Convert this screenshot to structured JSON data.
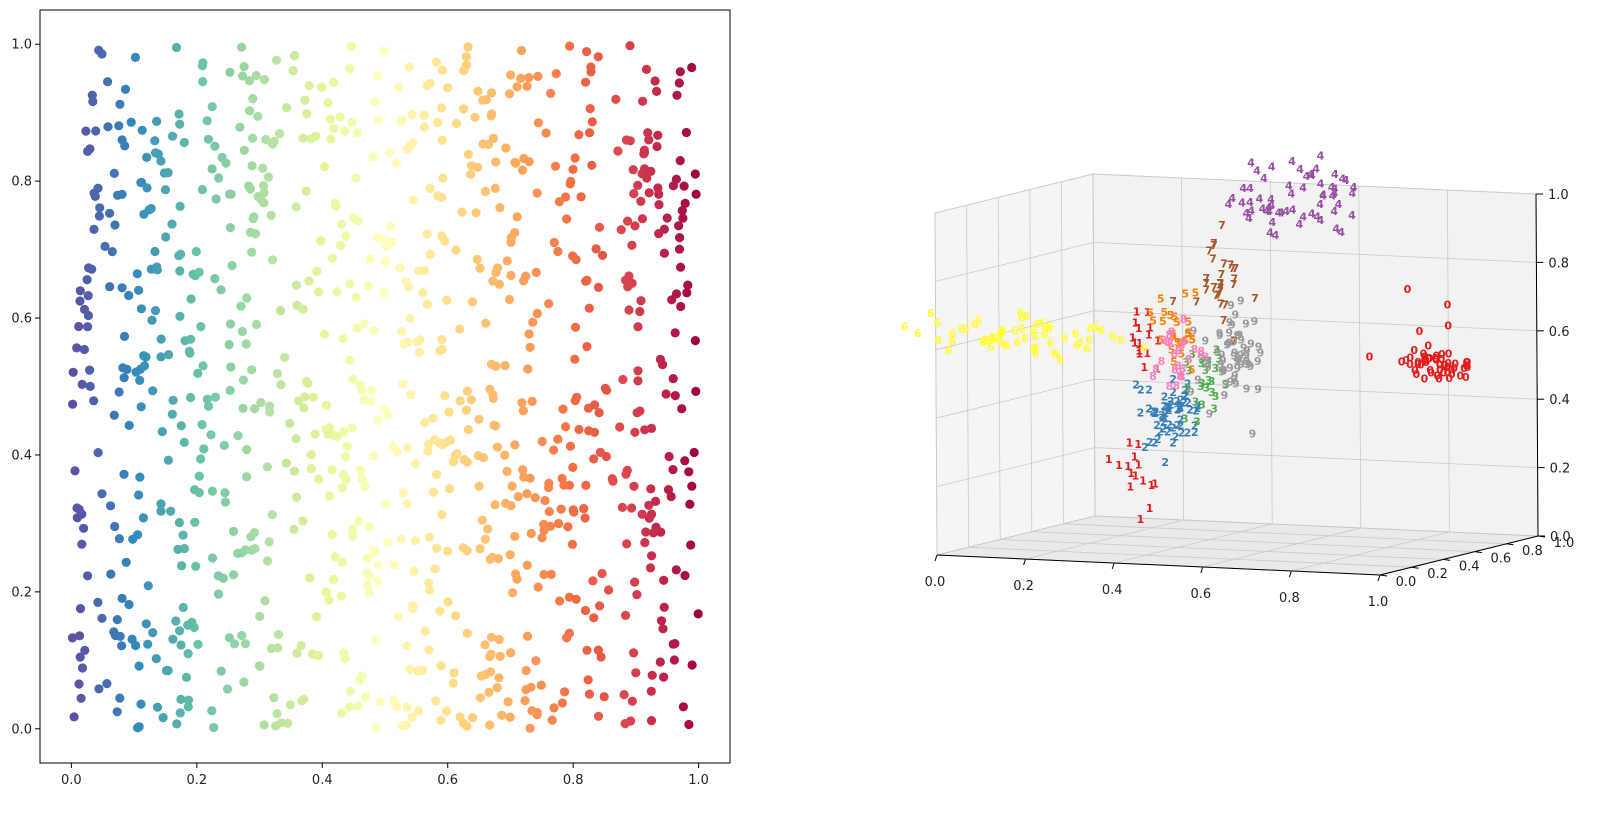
{
  "chart_data": [
    {
      "type": "scatter",
      "title": "",
      "xlabel": "",
      "ylabel": "",
      "xlim": [
        -0.05,
        1.05
      ],
      "ylim": [
        -0.05,
        1.05
      ],
      "xticks": [
        "0.0",
        "0.2",
        "0.4",
        "0.6",
        "0.8",
        "1.0"
      ],
      "yticks": [
        "0.0",
        "0.2",
        "0.4",
        "0.6",
        "0.8",
        "1.0"
      ],
      "grid": false,
      "colormap": "Spectral",
      "color_by": "x",
      "n_points": 1000,
      "distribution": "uniform random points in [0,1] x [0,1], colored by x value",
      "colormap_stops": [
        "#5e4fa2",
        "#3288bd",
        "#66c2a5",
        "#abdda4",
        "#e6f598",
        "#ffffbf",
        "#fee08b",
        "#fdae61",
        "#f46d43",
        "#d53e4f",
        "#9e0142"
      ]
    },
    {
      "type": "scatter3d",
      "title": "",
      "marker": "text digit labels",
      "xticks": [
        "0.0",
        "0.2",
        "0.4",
        "0.6",
        "0.8",
        "1.0"
      ],
      "yticks": [
        "0.0",
        "0.2",
        "0.4",
        "0.6",
        "0.8",
        "1.0"
      ],
      "zticks": [
        "0.0",
        "0.2",
        "0.4",
        "0.6",
        "0.8",
        "1.0"
      ],
      "xlim": [
        0,
        1
      ],
      "ylim": [
        0,
        1
      ],
      "zlim": [
        0,
        1
      ],
      "grid": true,
      "series": [
        {
          "name": "0",
          "color": "#e41a1c",
          "centers": [
            [
              0.93,
              0.5,
              0.55
            ],
            [
              0.96,
              0.55,
              0.52
            ]
          ],
          "extra": [
            [
              0.78,
              0.8,
              0.72
            ],
            [
              0.87,
              0.8,
              0.68
            ],
            [
              0.86,
              0.65,
              0.62
            ],
            [
              0.9,
              0.72,
              0.63
            ]
          ],
          "count": 50
        },
        {
          "name": "1",
          "color": "#e41a1c",
          "centers": [
            [
              0.33,
              0.3,
              0.2
            ],
            [
              0.33,
              0.35,
              0.62
            ]
          ],
          "count": 30
        },
        {
          "name": "2",
          "color": "#377eb8",
          "centers": [
            [
              0.4,
              0.38,
              0.38
            ]
          ],
          "count": 60
        },
        {
          "name": "3",
          "color": "#4daf4a",
          "centers": [
            [
              0.47,
              0.4,
              0.48
            ]
          ],
          "count": 25
        },
        {
          "name": "4",
          "color": "#984ea3",
          "centers": [
            [
              0.45,
              0.78,
              0.95
            ],
            [
              0.55,
              0.9,
              0.98
            ]
          ],
          "count": 60
        },
        {
          "name": "5",
          "color": "#ff7f00",
          "centers": [
            [
              0.4,
              0.42,
              0.6
            ]
          ],
          "count": 25
        },
        {
          "name": "6",
          "color": "#ffff33",
          "centers": [
            [
              0.1,
              0.3,
              0.6
            ]
          ],
          "count": 60
        },
        {
          "name": "7",
          "color": "#a65628",
          "centers": [
            [
              0.42,
              0.62,
              0.75
            ]
          ],
          "count": 30
        },
        {
          "name": "8",
          "color": "#f781bf",
          "centers": [
            [
              0.4,
              0.4,
              0.55
            ]
          ],
          "count": 25
        },
        {
          "name": "9",
          "color": "#999999",
          "centers": [
            [
              0.5,
              0.48,
              0.55
            ]
          ],
          "count": 60
        }
      ]
    }
  ]
}
